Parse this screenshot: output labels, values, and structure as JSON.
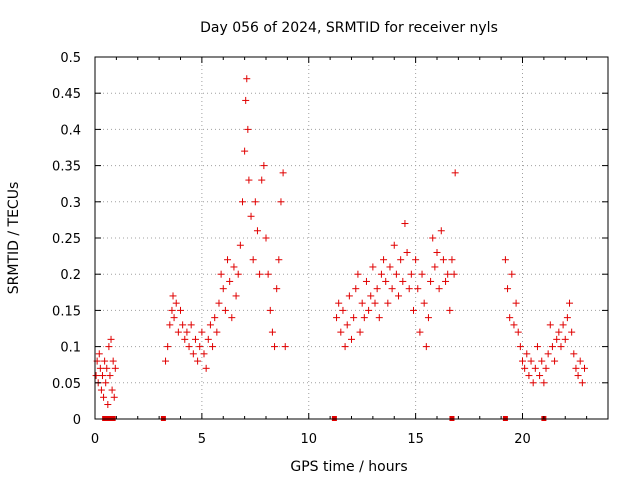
{
  "chart_data": {
    "type": "scatter",
    "title": "Day 056 of 2024, SRMTID for receiver nyls",
    "xlabel": "GPS time / hours",
    "ylabel": "SRMTID / TECUs",
    "xlim": [
      0,
      24
    ],
    "ylim": [
      0,
      0.5
    ],
    "xticks": [
      0,
      5,
      10,
      15,
      20
    ],
    "xtick_labels": [
      "0",
      "5",
      "10",
      "15",
      "20"
    ],
    "yticks": [
      0,
      0.05,
      0.1,
      0.15,
      0.2,
      0.25,
      0.3,
      0.35,
      0.4,
      0.45,
      0.5
    ],
    "ytick_labels": [
      "0",
      "0.05",
      "0.1",
      "0.15",
      "0.2",
      "0.25",
      "0.3",
      "0.35",
      "0.4",
      "0.45",
      "0.5"
    ],
    "grid": true,
    "marker": "+",
    "color": "#e00000",
    "series": [
      {
        "name": "SRMTID",
        "points": [
          [
            0.05,
            0.06
          ],
          [
            0.1,
            0.08
          ],
          [
            0.15,
            0.05
          ],
          [
            0.2,
            0.09
          ],
          [
            0.25,
            0.07
          ],
          [
            0.3,
            0.04
          ],
          [
            0.35,
            0.06
          ],
          [
            0.4,
            0.03
          ],
          [
            0.45,
            0.08
          ],
          [
            0.5,
            0.05
          ],
          [
            0.55,
            0.07
          ],
          [
            0.6,
            0.02
          ],
          [
            0.65,
            0.1
          ],
          [
            0.7,
            0.06
          ],
          [
            0.75,
            0.11
          ],
          [
            0.8,
            0.04
          ],
          [
            0.85,
            0.08
          ],
          [
            0.9,
            0.03
          ],
          [
            0.95,
            0.07
          ],
          [
            3.3,
            0.08
          ],
          [
            3.4,
            0.1
          ],
          [
            3.5,
            0.13
          ],
          [
            3.6,
            0.15
          ],
          [
            3.65,
            0.17
          ],
          [
            3.7,
            0.14
          ],
          [
            3.8,
            0.16
          ],
          [
            3.9,
            0.12
          ],
          [
            4.0,
            0.15
          ],
          [
            4.1,
            0.13
          ],
          [
            4.2,
            0.11
          ],
          [
            4.3,
            0.12
          ],
          [
            4.4,
            0.1
          ],
          [
            4.5,
            0.13
          ],
          [
            4.6,
            0.09
          ],
          [
            4.7,
            0.11
          ],
          [
            4.8,
            0.08
          ],
          [
            4.9,
            0.1
          ],
          [
            5.0,
            0.12
          ],
          [
            5.1,
            0.09
          ],
          [
            5.2,
            0.07
          ],
          [
            5.3,
            0.11
          ],
          [
            5.4,
            0.13
          ],
          [
            5.5,
            0.1
          ],
          [
            5.6,
            0.14
          ],
          [
            5.7,
            0.12
          ],
          [
            5.8,
            0.16
          ],
          [
            5.9,
            0.2
          ],
          [
            6.0,
            0.18
          ],
          [
            6.1,
            0.15
          ],
          [
            6.2,
            0.22
          ],
          [
            6.3,
            0.19
          ],
          [
            6.4,
            0.14
          ],
          [
            6.5,
            0.21
          ],
          [
            6.6,
            0.17
          ],
          [
            6.7,
            0.2
          ],
          [
            6.8,
            0.24
          ],
          [
            6.9,
            0.3
          ],
          [
            7.0,
            0.37
          ],
          [
            7.05,
            0.44
          ],
          [
            7.1,
            0.47
          ],
          [
            7.15,
            0.4
          ],
          [
            7.2,
            0.33
          ],
          [
            7.3,
            0.28
          ],
          [
            7.4,
            0.22
          ],
          [
            7.5,
            0.3
          ],
          [
            7.6,
            0.26
          ],
          [
            7.7,
            0.2
          ],
          [
            7.8,
            0.33
          ],
          [
            7.9,
            0.35
          ],
          [
            8.0,
            0.25
          ],
          [
            8.1,
            0.2
          ],
          [
            8.2,
            0.15
          ],
          [
            8.3,
            0.12
          ],
          [
            8.4,
            0.1
          ],
          [
            8.5,
            0.18
          ],
          [
            8.6,
            0.22
          ],
          [
            8.7,
            0.3
          ],
          [
            8.8,
            0.34
          ],
          [
            8.9,
            0.1
          ],
          [
            11.3,
            0.14
          ],
          [
            11.4,
            0.16
          ],
          [
            11.5,
            0.12
          ],
          [
            11.6,
            0.15
          ],
          [
            11.7,
            0.1
          ],
          [
            11.8,
            0.13
          ],
          [
            11.9,
            0.17
          ],
          [
            12.0,
            0.11
          ],
          [
            12.1,
            0.14
          ],
          [
            12.2,
            0.18
          ],
          [
            12.3,
            0.2
          ],
          [
            12.4,
            0.12
          ],
          [
            12.5,
            0.16
          ],
          [
            12.6,
            0.14
          ],
          [
            12.7,
            0.19
          ],
          [
            12.8,
            0.15
          ],
          [
            12.9,
            0.17
          ],
          [
            13.0,
            0.21
          ],
          [
            13.1,
            0.16
          ],
          [
            13.2,
            0.18
          ],
          [
            13.3,
            0.14
          ],
          [
            13.4,
            0.2
          ],
          [
            13.5,
            0.22
          ],
          [
            13.6,
            0.19
          ],
          [
            13.7,
            0.16
          ],
          [
            13.8,
            0.21
          ],
          [
            13.9,
            0.18
          ],
          [
            14.0,
            0.24
          ],
          [
            14.1,
            0.2
          ],
          [
            14.2,
            0.17
          ],
          [
            14.3,
            0.22
          ],
          [
            14.4,
            0.19
          ],
          [
            14.5,
            0.27
          ],
          [
            14.6,
            0.23
          ],
          [
            14.7,
            0.18
          ],
          [
            14.8,
            0.2
          ],
          [
            14.9,
            0.15
          ],
          [
            15.0,
            0.22
          ],
          [
            15.1,
            0.18
          ],
          [
            15.2,
            0.12
          ],
          [
            15.3,
            0.2
          ],
          [
            15.4,
            0.16
          ],
          [
            15.5,
            0.1
          ],
          [
            15.6,
            0.14
          ],
          [
            15.7,
            0.19
          ],
          [
            15.8,
            0.25
          ],
          [
            15.9,
            0.21
          ],
          [
            16.0,
            0.23
          ],
          [
            16.1,
            0.18
          ],
          [
            16.2,
            0.26
          ],
          [
            16.3,
            0.22
          ],
          [
            16.4,
            0.19
          ],
          [
            16.5,
            0.2
          ],
          [
            16.6,
            0.15
          ],
          [
            16.7,
            0.22
          ],
          [
            16.8,
            0.2
          ],
          [
            16.85,
            0.34
          ],
          [
            19.2,
            0.22
          ],
          [
            19.3,
            0.18
          ],
          [
            19.4,
            0.14
          ],
          [
            19.5,
            0.2
          ],
          [
            19.6,
            0.13
          ],
          [
            19.7,
            0.16
          ],
          [
            19.8,
            0.12
          ],
          [
            19.9,
            0.1
          ],
          [
            20.0,
            0.08
          ],
          [
            20.1,
            0.07
          ],
          [
            20.2,
            0.09
          ],
          [
            20.3,
            0.06
          ],
          [
            20.4,
            0.08
          ],
          [
            20.5,
            0.05
          ],
          [
            20.6,
            0.07
          ],
          [
            20.7,
            0.1
          ],
          [
            20.8,
            0.06
          ],
          [
            20.9,
            0.08
          ],
          [
            21.0,
            0.05
          ],
          [
            21.1,
            0.07
          ],
          [
            21.2,
            0.09
          ],
          [
            21.3,
            0.13
          ],
          [
            21.4,
            0.1
          ],
          [
            21.5,
            0.08
          ],
          [
            21.6,
            0.11
          ],
          [
            21.7,
            0.12
          ],
          [
            21.8,
            0.1
          ],
          [
            21.9,
            0.13
          ],
          [
            22.0,
            0.11
          ],
          [
            22.1,
            0.14
          ],
          [
            22.2,
            0.16
          ],
          [
            22.3,
            0.12
          ],
          [
            22.4,
            0.09
          ],
          [
            22.5,
            0.07
          ],
          [
            22.6,
            0.06
          ],
          [
            22.7,
            0.08
          ],
          [
            22.8,
            0.05
          ],
          [
            22.9,
            0.07
          ]
        ]
      }
    ],
    "zero_markers": [
      0.45,
      0.65,
      0.85,
      3.2,
      11.2,
      16.7,
      19.2,
      21.0
    ]
  }
}
